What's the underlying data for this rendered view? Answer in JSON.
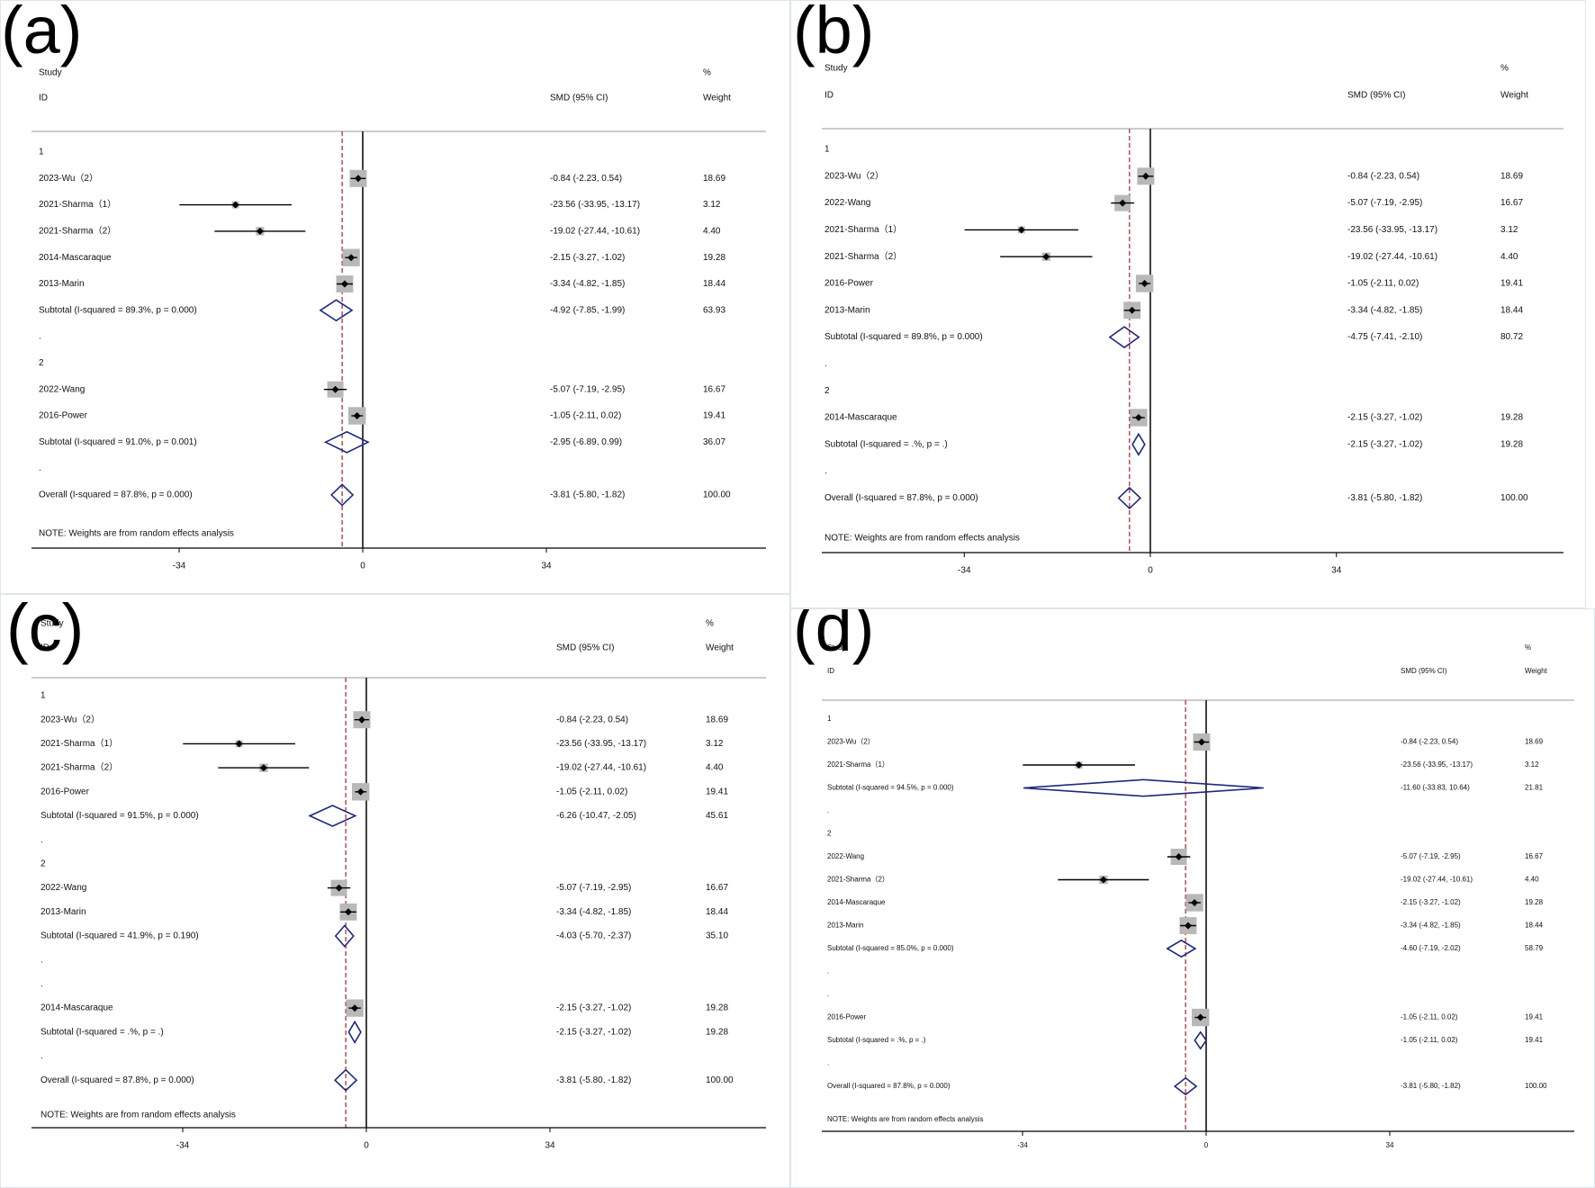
{
  "colors": {
    "axis": "#000000",
    "ref_line": "#b0303a",
    "box": "#b8b8b8",
    "diamond": "#1d2a7a",
    "ci_line": "#000000",
    "panel_border": "#dde6ea"
  },
  "chart_data": [
    {
      "label": "(a)",
      "type": "forest",
      "header": {
        "study": "Study",
        "id": "ID",
        "effect": "SMD (95% CI)",
        "pct": "%",
        "weight": "Weight"
      },
      "xlim": [
        -34,
        34
      ],
      "ticks": [
        "-34",
        "0",
        "34"
      ],
      "overall_effect": -3.81,
      "rows": [
        {
          "kind": "group",
          "label": "1"
        },
        {
          "kind": "study",
          "label": "2023-Wu（2）",
          "est": -0.84,
          "lo": -2.23,
          "hi": 0.54,
          "ci": "-0.84 (-2.23, 0.54)",
          "weight": "18.69"
        },
        {
          "kind": "study",
          "label": "2021-Sharma（1）",
          "est": -23.56,
          "lo": -33.95,
          "hi": -13.17,
          "ci": "-23.56 (-33.95, -13.17)",
          "weight": "3.12"
        },
        {
          "kind": "study",
          "label": "2021-Sharma（2）",
          "est": -19.02,
          "lo": -27.44,
          "hi": -10.61,
          "ci": "-19.02 (-27.44, -10.61)",
          "weight": "4.40"
        },
        {
          "kind": "study",
          "label": "2014-Mascaraque",
          "est": -2.15,
          "lo": -3.27,
          "hi": -1.02,
          "ci": "-2.15 (-3.27, -1.02)",
          "weight": "19.28"
        },
        {
          "kind": "study",
          "label": "2013-Marin",
          "est": -3.34,
          "lo": -4.82,
          "hi": -1.85,
          "ci": "-3.34 (-4.82, -1.85)",
          "weight": "18.44"
        },
        {
          "kind": "subtotal",
          "label": "Subtotal  (I-squared = 89.3%, p = 0.000)",
          "est": -4.92,
          "lo": -7.85,
          "hi": -1.99,
          "ci": "-4.92 (-7.85, -1.99)",
          "weight": "63.93"
        },
        {
          "kind": "dot",
          "label": "."
        },
        {
          "kind": "group",
          "label": "2"
        },
        {
          "kind": "study",
          "label": "2022-Wang",
          "est": -5.07,
          "lo": -7.19,
          "hi": -2.95,
          "ci": "-5.07 (-7.19, -2.95)",
          "weight": "16.67"
        },
        {
          "kind": "study",
          "label": "2016-Power",
          "est": -1.05,
          "lo": -2.11,
          "hi": 0.02,
          "ci": "-1.05 (-2.11, 0.02)",
          "weight": "19.41"
        },
        {
          "kind": "subtotal",
          "label": "Subtotal  (I-squared = 91.0%, p = 0.001)",
          "est": -2.95,
          "lo": -6.89,
          "hi": 0.99,
          "ci": "-2.95 (-6.89, 0.99)",
          "weight": "36.07"
        },
        {
          "kind": "dot",
          "label": "."
        },
        {
          "kind": "overall",
          "label": "Overall  (I-squared = 87.8%, p = 0.000)",
          "est": -3.81,
          "lo": -5.8,
          "hi": -1.82,
          "ci": "-3.81 (-5.80, -1.82)",
          "weight": "100.00"
        }
      ],
      "note": "NOTE: Weights are from random effects analysis"
    },
    {
      "label": "(b)",
      "type": "forest",
      "header": {
        "study": "Study",
        "id": "ID",
        "effect": "SMD (95% CI)",
        "pct": "%",
        "weight": "Weight"
      },
      "xlim": [
        -34,
        34
      ],
      "ticks": [
        "-34",
        "0",
        "34"
      ],
      "overall_effect": -3.81,
      "rows": [
        {
          "kind": "group",
          "label": "1"
        },
        {
          "kind": "study",
          "label": "2023-Wu（2）",
          "est": -0.84,
          "lo": -2.23,
          "hi": 0.54,
          "ci": "-0.84 (-2.23, 0.54)",
          "weight": "18.69"
        },
        {
          "kind": "study",
          "label": "2022-Wang",
          "est": -5.07,
          "lo": -7.19,
          "hi": -2.95,
          "ci": "-5.07 (-7.19, -2.95)",
          "weight": "16.67"
        },
        {
          "kind": "study",
          "label": "2021-Sharma（1）",
          "est": -23.56,
          "lo": -33.95,
          "hi": -13.17,
          "ci": "-23.56 (-33.95, -13.17)",
          "weight": "3.12"
        },
        {
          "kind": "study",
          "label": "2021-Sharma（2）",
          "est": -19.02,
          "lo": -27.44,
          "hi": -10.61,
          "ci": "-19.02 (-27.44, -10.61)",
          "weight": "4.40"
        },
        {
          "kind": "study",
          "label": "2016-Power",
          "est": -1.05,
          "lo": -2.11,
          "hi": 0.02,
          "ci": "-1.05 (-2.11, 0.02)",
          "weight": "19.41"
        },
        {
          "kind": "study",
          "label": "2013-Marin",
          "est": -3.34,
          "lo": -4.82,
          "hi": -1.85,
          "ci": "-3.34 (-4.82, -1.85)",
          "weight": "18.44"
        },
        {
          "kind": "subtotal",
          "label": "Subtotal  (I-squared = 89.8%, p = 0.000)",
          "est": -4.75,
          "lo": -7.41,
          "hi": -2.1,
          "ci": "-4.75 (-7.41, -2.10)",
          "weight": "80.72"
        },
        {
          "kind": "dot",
          "label": "."
        },
        {
          "kind": "group",
          "label": "2"
        },
        {
          "kind": "study",
          "label": "2014-Mascaraque",
          "est": -2.15,
          "lo": -3.27,
          "hi": -1.02,
          "ci": "-2.15 (-3.27, -1.02)",
          "weight": "19.28"
        },
        {
          "kind": "subtotal",
          "label": "Subtotal  (I-squared = .%, p = .)",
          "est": -2.15,
          "lo": -3.27,
          "hi": -1.02,
          "ci": "-2.15 (-3.27, -1.02)",
          "weight": "19.28"
        },
        {
          "kind": "dot",
          "label": "."
        },
        {
          "kind": "overall",
          "label": "Overall  (I-squared = 87.8%, p = 0.000)",
          "est": -3.81,
          "lo": -5.8,
          "hi": -1.82,
          "ci": "-3.81 (-5.80, -1.82)",
          "weight": "100.00"
        }
      ],
      "note": "NOTE: Weights are from random effects analysis"
    },
    {
      "label": "(c)",
      "type": "forest",
      "header": {
        "study": "Study",
        "id": "ID",
        "effect": "SMD (95% CI)",
        "pct": "%",
        "weight": "Weight"
      },
      "xlim": [
        -34,
        34
      ],
      "ticks": [
        "-34",
        "0",
        "34"
      ],
      "overall_effect": -3.81,
      "rows": [
        {
          "kind": "group",
          "label": "1"
        },
        {
          "kind": "study",
          "label": "2023-Wu（2）",
          "est": -0.84,
          "lo": -2.23,
          "hi": 0.54,
          "ci": "-0.84 (-2.23, 0.54)",
          "weight": "18.69"
        },
        {
          "kind": "study",
          "label": "2021-Sharma（1）",
          "est": -23.56,
          "lo": -33.95,
          "hi": -13.17,
          "ci": "-23.56 (-33.95, -13.17)",
          "weight": "3.12"
        },
        {
          "kind": "study",
          "label": "2021-Sharma（2）",
          "est": -19.02,
          "lo": -27.44,
          "hi": -10.61,
          "ci": "-19.02 (-27.44, -10.61)",
          "weight": "4.40"
        },
        {
          "kind": "study",
          "label": "2016-Power",
          "est": -1.05,
          "lo": -2.11,
          "hi": 0.02,
          "ci": "-1.05 (-2.11, 0.02)",
          "weight": "19.41"
        },
        {
          "kind": "subtotal",
          "label": "Subtotal  (I-squared = 91.5%, p = 0.000)",
          "est": -6.26,
          "lo": -10.47,
          "hi": -2.05,
          "ci": "-6.26 (-10.47, -2.05)",
          "weight": "45.61"
        },
        {
          "kind": "dot",
          "label": "."
        },
        {
          "kind": "group",
          "label": "2"
        },
        {
          "kind": "study",
          "label": "2022-Wang",
          "est": -5.07,
          "lo": -7.19,
          "hi": -2.95,
          "ci": "-5.07 (-7.19, -2.95)",
          "weight": "16.67"
        },
        {
          "kind": "study",
          "label": "2013-Marin",
          "est": -3.34,
          "lo": -4.82,
          "hi": -1.85,
          "ci": "-3.34 (-4.82, -1.85)",
          "weight": "18.44"
        },
        {
          "kind": "subtotal",
          "label": "Subtotal  (I-squared = 41.9%, p = 0.190)",
          "est": -4.03,
          "lo": -5.7,
          "hi": -2.37,
          "ci": "-4.03 (-5.70, -2.37)",
          "weight": "35.10"
        },
        {
          "kind": "dot",
          "label": "."
        },
        {
          "kind": "dot",
          "label": "."
        },
        {
          "kind": "study",
          "label": "2014-Mascaraque",
          "est": -2.15,
          "lo": -3.27,
          "hi": -1.02,
          "ci": "-2.15 (-3.27, -1.02)",
          "weight": "19.28"
        },
        {
          "kind": "subtotal",
          "label": "Subtotal  (I-squared = .%, p = .)",
          "est": -2.15,
          "lo": -3.27,
          "hi": -1.02,
          "ci": "-2.15 (-3.27, -1.02)",
          "weight": "19.28"
        },
        {
          "kind": "dot",
          "label": "."
        },
        {
          "kind": "overall",
          "label": "Overall  (I-squared = 87.8%, p = 0.000)",
          "est": -3.81,
          "lo": -5.8,
          "hi": -1.82,
          "ci": "-3.81 (-5.80, -1.82)",
          "weight": "100.00"
        }
      ],
      "note": "NOTE: Weights are from random effects analysis"
    },
    {
      "label": "(d)",
      "type": "forest",
      "header": {
        "study": "Study",
        "id": "ID",
        "effect": "SMD (95% CI)",
        "pct": "%",
        "weight": "Weight"
      },
      "xlim": [
        -34,
        34
      ],
      "ticks": [
        "-34",
        "0",
        "34"
      ],
      "overall_effect": -3.81,
      "rows": [
        {
          "kind": "group",
          "label": "1"
        },
        {
          "kind": "study",
          "label": "2023-Wu（2）",
          "est": -0.84,
          "lo": -2.23,
          "hi": 0.54,
          "ci": "-0.84 (-2.23, 0.54)",
          "weight": "18.69"
        },
        {
          "kind": "study",
          "label": "2021-Sharma（1）",
          "est": -23.56,
          "lo": -33.95,
          "hi": -13.17,
          "ci": "-23.56 (-33.95, -13.17)",
          "weight": "3.12"
        },
        {
          "kind": "subtotal",
          "label": "Subtotal  (I-squared = 94.5%, p = 0.000)",
          "est": -11.6,
          "lo": -33.83,
          "hi": 10.64,
          "ci": "-11.60 (-33.83, 10.64)",
          "weight": "21.81"
        },
        {
          "kind": "dot",
          "label": "."
        },
        {
          "kind": "group",
          "label": "2"
        },
        {
          "kind": "study",
          "label": "2022-Wang",
          "est": -5.07,
          "lo": -7.19,
          "hi": -2.95,
          "ci": "-5.07 (-7.19, -2.95)",
          "weight": "16.67"
        },
        {
          "kind": "study",
          "label": "2021-Sharma（2）",
          "est": -19.02,
          "lo": -27.44,
          "hi": -10.61,
          "ci": "-19.02 (-27.44, -10.61)",
          "weight": "4.40"
        },
        {
          "kind": "study",
          "label": "2014-Mascaraque",
          "est": -2.15,
          "lo": -3.27,
          "hi": -1.02,
          "ci": "-2.15 (-3.27, -1.02)",
          "weight": "19.28"
        },
        {
          "kind": "study",
          "label": "2013-Marin",
          "est": -3.34,
          "lo": -4.82,
          "hi": -1.85,
          "ci": "-3.34 (-4.82, -1.85)",
          "weight": "18.44"
        },
        {
          "kind": "subtotal",
          "label": "Subtotal  (I-squared = 85.0%, p = 0.000)",
          "est": -4.6,
          "lo": -7.19,
          "hi": -2.02,
          "ci": "-4.60 (-7.19, -2.02)",
          "weight": "58.79"
        },
        {
          "kind": "dot",
          "label": "."
        },
        {
          "kind": "dot",
          "label": "."
        },
        {
          "kind": "study",
          "label": "2016-Power",
          "est": -1.05,
          "lo": -2.11,
          "hi": 0.02,
          "ci": "-1.05 (-2.11, 0.02)",
          "weight": "19.41"
        },
        {
          "kind": "subtotal",
          "label": "Subtotal  (I-squared = .%, p = .)",
          "est": -1.05,
          "lo": -2.11,
          "hi": 0.02,
          "ci": "-1.05 (-2.11, 0.02)",
          "weight": "19.41"
        },
        {
          "kind": "dot",
          "label": "."
        },
        {
          "kind": "overall",
          "label": "Overall  (I-squared = 87.8%, p = 0.000)",
          "est": -3.81,
          "lo": -5.8,
          "hi": -1.82,
          "ci": "-3.81 (-5.80, -1.82)",
          "weight": "100.00"
        }
      ],
      "note": "NOTE: Weights are from random effects analysis"
    }
  ]
}
